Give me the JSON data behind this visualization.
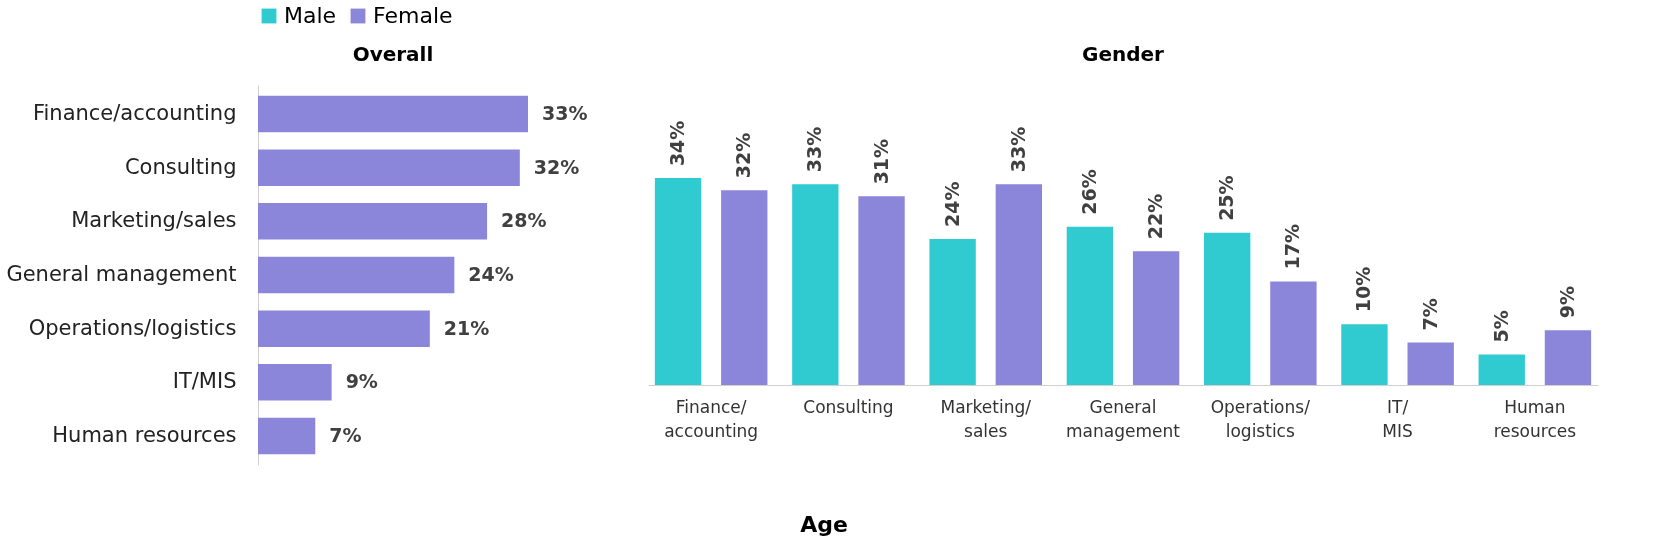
{
  "chart_data": [
    {
      "type": "bar",
      "title": "Overall",
      "orientation": "horizontal",
      "categories": [
        "Finance/accounting",
        "Consulting",
        "Marketing/sales",
        "General management",
        "Operations/logistics",
        "IT/MIS",
        "Human resources"
      ],
      "values": [
        33,
        32,
        28,
        24,
        21,
        9,
        7
      ],
      "value_labels": [
        "33%",
        "32%",
        "28%",
        "24%",
        "21%",
        "9%",
        "7%"
      ],
      "color": "#8b86da"
    },
    {
      "type": "bar",
      "title": "Gender",
      "categories": [
        "Finance/accounting",
        "Consulting",
        "Marketing/sales",
        "General management",
        "Operations/logistics",
        "IT/MIS",
        "Human resources"
      ],
      "series": [
        {
          "name": "Male",
          "color": "#2fcbd1",
          "values": [
            34,
            33,
            24,
            26,
            25,
            10,
            5
          ],
          "value_labels": [
            "34%",
            "33%",
            "24%",
            "26%",
            "25%",
            "10%",
            "5%"
          ]
        },
        {
          "name": "Female",
          "color": "#8b86da",
          "values": [
            32,
            31,
            33,
            22,
            17,
            7,
            9
          ],
          "value_labels": [
            "32%",
            "31%",
            "33%",
            "22%",
            "17%",
            "7%",
            "9%"
          ]
        }
      ],
      "legend": "top",
      "annotations": [
        "Age"
      ]
    }
  ]
}
